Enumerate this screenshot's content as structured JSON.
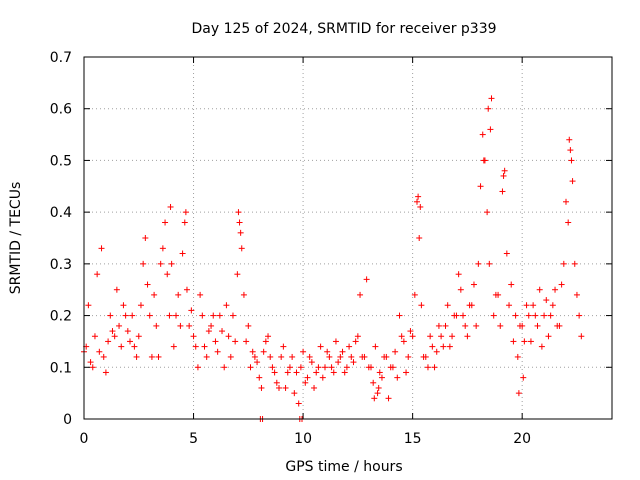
{
  "chart_data": {
    "type": "scatter",
    "title": "Day 125 of 2024, SRMTID for receiver p339",
    "xlabel": "GPS time / hours",
    "ylabel": "SRMTID / TECUs",
    "xlim": [
      0,
      24.1
    ],
    "ylim": [
      0,
      0.7
    ],
    "xticks": [
      0,
      5,
      10,
      15,
      20
    ],
    "xtick_labels": [
      "0",
      "5",
      "10",
      "15",
      "20"
    ],
    "yticks": [
      0,
      0.1,
      0.2,
      0.3,
      0.4,
      0.5,
      0.6,
      0.7
    ],
    "ytick_labels": [
      "0",
      "0.1",
      "0.2",
      "0.3",
      "0.4",
      "0.5",
      "0.6",
      "0.7"
    ],
    "grid": true,
    "marker": "plus",
    "color": "#ff0000",
    "series": [
      {
        "name": "SRMTID",
        "x": [
          0.0,
          0.2,
          0.4,
          0.5,
          0.6,
          0.8,
          0.9,
          1.0,
          1.1,
          1.2,
          1.4,
          1.5,
          1.6,
          1.7,
          1.8,
          2.0,
          2.2,
          2.4,
          2.5,
          2.6,
          2.7,
          2.8,
          2.9,
          3.0,
          3.1,
          3.2,
          3.3,
          3.5,
          3.6,
          3.7,
          3.8,
          3.9,
          4.0,
          4.1,
          4.2,
          4.3,
          4.5,
          4.6,
          4.7,
          4.8,
          4.9,
          5.0,
          5.2,
          5.4,
          5.5,
          5.6,
          5.8,
          6.0,
          6.2,
          6.4,
          6.6,
          6.8,
          7.0,
          7.1,
          7.2,
          7.3,
          7.4,
          7.6,
          7.8,
          8.0,
          8.2,
          8.4,
          8.6,
          8.8,
          9.0,
          9.2,
          9.4,
          9.6,
          9.7,
          9.8,
          9.9,
          10.0,
          10.2,
          10.4,
          10.6,
          10.8,
          11.0,
          11.2,
          11.4,
          11.6,
          11.8,
          12.0,
          12.2,
          12.4,
          12.6,
          12.8,
          13.0,
          13.2,
          13.4,
          13.6,
          13.8,
          14.0,
          14.2,
          14.4,
          14.6,
          14.8,
          15.0,
          15.1,
          15.2,
          15.3,
          15.4,
          15.6,
          15.8,
          16.0,
          16.2,
          16.4,
          16.6,
          16.8,
          17.0,
          17.2,
          17.4,
          17.6,
          17.8,
          18.0,
          18.1,
          18.2,
          18.3,
          18.4,
          18.5,
          18.6,
          18.8,
          19.0,
          19.1,
          19.2,
          19.3,
          19.4,
          19.6,
          19.8,
          20.0,
          20.2,
          20.4,
          20.6,
          20.8,
          21.0,
          21.2,
          21.4,
          21.6,
          21.8,
          21.9,
          22.0,
          22.1,
          22.2,
          22.3,
          22.4,
          22.5,
          22.6,
          22.7,
          0.1,
          0.3,
          0.7,
          1.3,
          1.9,
          2.1,
          2.3,
          3.4,
          4.4,
          5.1,
          5.3,
          5.7,
          5.9,
          6.1,
          6.3,
          6.5,
          6.7,
          6.9,
          7.5,
          7.7,
          7.9,
          8.1,
          8.3,
          8.5,
          8.7,
          8.9,
          9.1,
          9.3,
          9.5,
          10.1,
          10.3,
          10.5,
          10.7,
          10.9,
          11.1,
          11.3,
          11.5,
          11.7,
          11.9,
          12.1,
          12.3,
          12.5,
          12.7,
          12.9,
          13.1,
          13.3,
          13.5,
          13.7,
          13.9,
          14.1,
          14.3,
          14.5,
          14.7,
          14.9,
          15.5,
          15.7,
          15.9,
          16.1,
          16.3,
          16.5,
          16.7,
          16.9,
          17.1,
          17.3,
          17.5,
          17.7,
          17.9,
          18.7,
          18.9,
          19.5,
          19.7,
          19.9,
          20.1,
          20.3,
          20.5,
          20.7,
          20.9,
          21.1,
          21.3,
          21.5,
          21.7,
          8.05,
          8.15,
          9.85,
          9.95,
          13.25,
          13.45,
          19.85,
          20.05,
          7.05,
          7.15,
          4.65,
          3.95,
          18.45,
          18.55,
          18.25,
          22.15,
          22.25,
          19.15,
          15.25,
          15.35
        ],
        "y": [
          0.13,
          0.22,
          0.1,
          0.16,
          0.28,
          0.33,
          0.12,
          0.09,
          0.15,
          0.2,
          0.16,
          0.25,
          0.18,
          0.14,
          0.22,
          0.17,
          0.2,
          0.12,
          0.16,
          0.22,
          0.3,
          0.35,
          0.26,
          0.2,
          0.12,
          0.24,
          0.18,
          0.3,
          0.33,
          0.38,
          0.28,
          0.2,
          0.3,
          0.14,
          0.2,
          0.24,
          0.32,
          0.38,
          0.25,
          0.18,
          0.21,
          0.16,
          0.1,
          0.2,
          0.14,
          0.12,
          0.18,
          0.15,
          0.2,
          0.1,
          0.16,
          0.2,
          0.28,
          0.38,
          0.33,
          0.24,
          0.15,
          0.1,
          0.12,
          0.08,
          0.13,
          0.16,
          0.1,
          0.07,
          0.12,
          0.06,
          0.1,
          0.05,
          0.09,
          0.03,
          0.1,
          0.13,
          0.08,
          0.11,
          0.09,
          0.14,
          0.1,
          0.12,
          0.09,
          0.11,
          0.13,
          0.1,
          0.12,
          0.15,
          0.24,
          0.12,
          0.1,
          0.07,
          0.05,
          0.08,
          0.12,
          0.1,
          0.13,
          0.2,
          0.15,
          0.12,
          0.16,
          0.24,
          0.42,
          0.35,
          0.22,
          0.12,
          0.16,
          0.1,
          0.18,
          0.14,
          0.22,
          0.16,
          0.2,
          0.25,
          0.18,
          0.22,
          0.26,
          0.3,
          0.45,
          0.55,
          0.5,
          0.4,
          0.3,
          0.62,
          0.24,
          0.18,
          0.44,
          0.48,
          0.32,
          0.22,
          0.15,
          0.12,
          0.18,
          0.22,
          0.15,
          0.2,
          0.25,
          0.2,
          0.16,
          0.22,
          0.18,
          0.26,
          0.3,
          0.42,
          0.38,
          0.52,
          0.46,
          0.3,
          0.24,
          0.2,
          0.16,
          0.14,
          0.11,
          0.13,
          0.17,
          0.2,
          0.15,
          0.14,
          0.12,
          0.18,
          0.14,
          0.24,
          0.17,
          0.2,
          0.13,
          0.17,
          0.22,
          0.12,
          0.15,
          0.18,
          0.13,
          0.11,
          0.06,
          0.15,
          0.12,
          0.09,
          0.06,
          0.14,
          0.09,
          0.12,
          0.07,
          0.12,
          0.06,
          0.1,
          0.08,
          0.13,
          0.1,
          0.15,
          0.12,
          0.09,
          0.14,
          0.11,
          0.16,
          0.12,
          0.27,
          0.1,
          0.14,
          0.09,
          0.12,
          0.04,
          0.1,
          0.08,
          0.16,
          0.09,
          0.17,
          0.12,
          0.1,
          0.14,
          0.13,
          0.16,
          0.18,
          0.14,
          0.2,
          0.28,
          0.2,
          0.16,
          0.22,
          0.18,
          0.2,
          0.24,
          0.26,
          0.2,
          0.18,
          0.15,
          0.2,
          0.22,
          0.18,
          0.14,
          0.23,
          0.2,
          0.25,
          0.18,
          0.0,
          0.0,
          0.0,
          0.0,
          0.04,
          0.06,
          0.05,
          0.08,
          0.4,
          0.36,
          0.4,
          0.41,
          0.6,
          0.56,
          0.5,
          0.54,
          0.5,
          0.47,
          0.43,
          0.41
        ]
      }
    ]
  }
}
